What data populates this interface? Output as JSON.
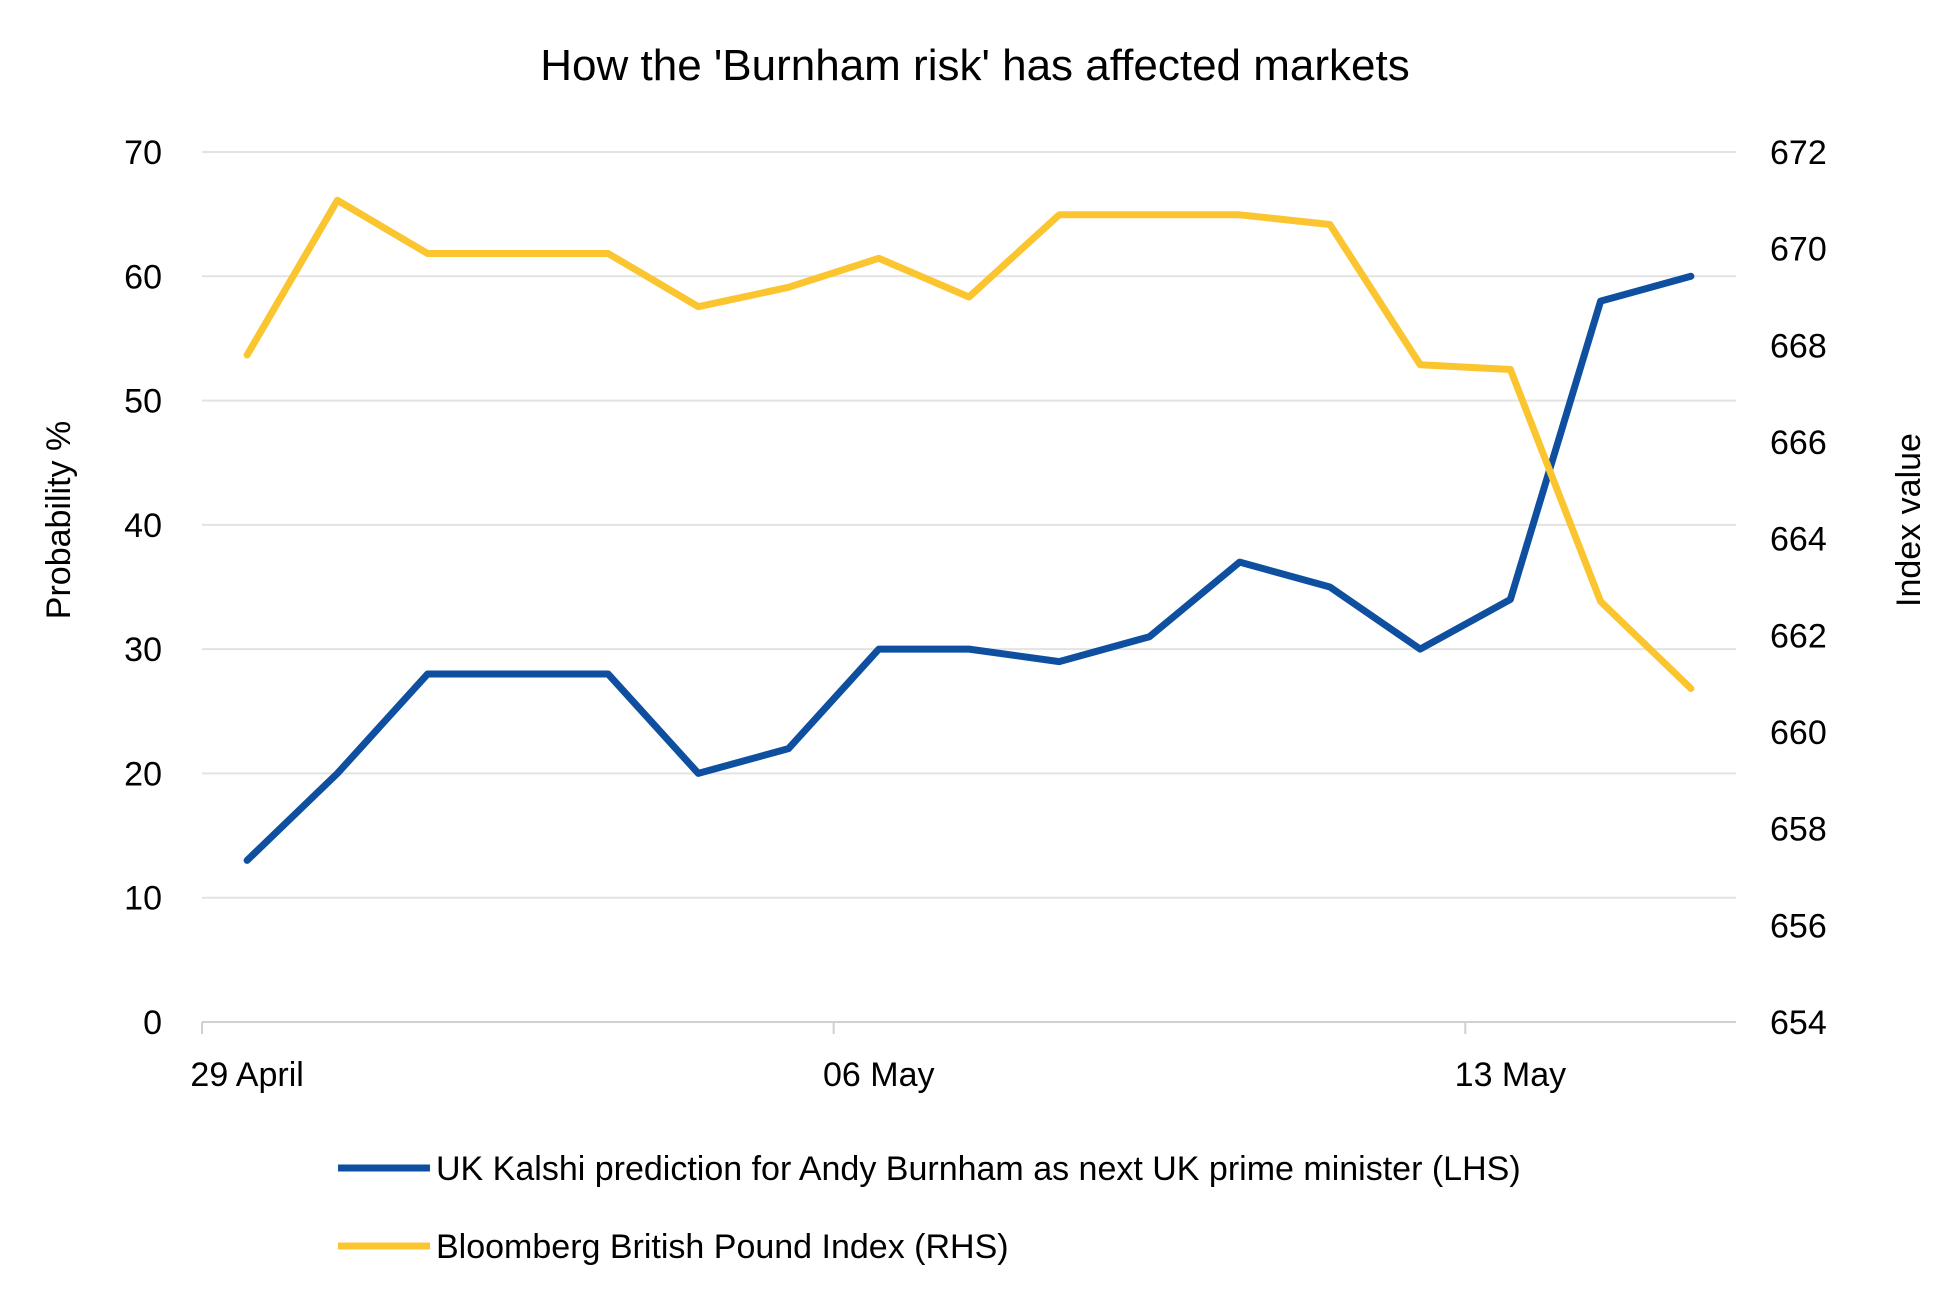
{
  "chart_data": {
    "type": "line",
    "title": "How the 'Burnham risk' has affected markets",
    "ylabel": "Probability %",
    "y2label": "Index value",
    "ylim": [
      0,
      70
    ],
    "y2lim": [
      654,
      672
    ],
    "yticks": [
      "0",
      "10",
      "20",
      "30",
      "40",
      "50",
      "60",
      "70"
    ],
    "y2ticks": [
      "654",
      "656",
      "658",
      "660",
      "662",
      "664",
      "666",
      "668",
      "670",
      "672"
    ],
    "x": [
      "29 April",
      "30 April",
      "01 May",
      "02 May",
      "03 May",
      "04 May",
      "05 May",
      "06 May",
      "07 May",
      "08 May",
      "09 May",
      "10 May",
      "11 May",
      "12 May",
      "13 May",
      "14 May",
      "15 May"
    ],
    "x_tick_labels": [
      "29 April",
      "06 May",
      "13 May"
    ],
    "grid": true,
    "legend_position": "bottom",
    "series": [
      {
        "name": "UK Kalshi prediction for Andy Burnham as next UK prime minister (LHS)",
        "axis": "left",
        "color": "#0e4fa0",
        "values": [
          13,
          20,
          28,
          28,
          28,
          20,
          22,
          30,
          30,
          29,
          31,
          37,
          35,
          30,
          34,
          58,
          60
        ]
      },
      {
        "name": "Bloomberg British Pound Index (RHS)",
        "axis": "right",
        "color": "#fbc530",
        "values": [
          667.8,
          671.0,
          669.9,
          669.9,
          669.9,
          668.8,
          669.2,
          669.8,
          669.0,
          670.7,
          670.7,
          670.7,
          670.5,
          667.6,
          667.5,
          662.7,
          660.9
        ]
      }
    ]
  }
}
